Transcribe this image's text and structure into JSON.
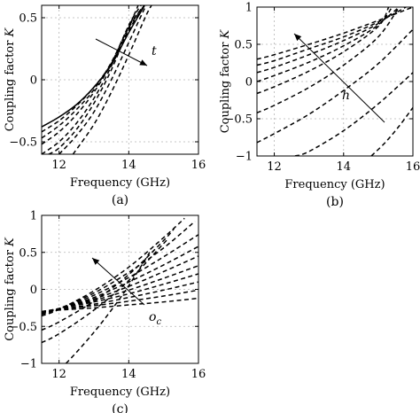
{
  "chart_data": [
    {
      "id": "a",
      "type": "line",
      "panel_label": "(a)",
      "xlabel": "Frequency (GHz)",
      "ylabel": "Coupling factor K",
      "xlim": [
        11.5,
        16
      ],
      "ylim": [
        -0.6,
        0.6
      ],
      "xticks": [
        12,
        14,
        16
      ],
      "yticks": [
        -0.5,
        0,
        0.5
      ],
      "grid": true,
      "annotation": {
        "label": "t",
        "direction": "increasing"
      },
      "series": [
        {
          "style": "solid",
          "x": [
            11.5,
            12,
            12.5,
            13,
            13.5,
            14,
            14.5
          ],
          "y": [
            -0.38,
            -0.3,
            -0.2,
            -0.06,
            0.12,
            0.38,
            0.62
          ]
        },
        {
          "style": "dashed",
          "x": [
            11.5,
            12,
            12.5,
            13,
            13.5,
            14,
            14.5
          ],
          "y": [
            -0.42,
            -0.33,
            -0.21,
            -0.06,
            0.13,
            0.4,
            0.62
          ]
        },
        {
          "style": "dashed",
          "x": [
            11.5,
            12,
            12.5,
            13,
            13.5,
            14,
            14.5
          ],
          "y": [
            -0.47,
            -0.37,
            -0.24,
            -0.08,
            0.14,
            0.42,
            0.62
          ]
        },
        {
          "style": "dashed",
          "x": [
            11.5,
            12,
            12.5,
            13,
            13.5,
            14,
            14.5
          ],
          "y": [
            -0.52,
            -0.42,
            -0.28,
            -0.1,
            0.13,
            0.43,
            0.62
          ]
        },
        {
          "style": "dashed",
          "x": [
            11.5,
            12,
            12.5,
            13,
            13.5,
            14,
            14.4
          ],
          "y": [
            -0.6,
            -0.5,
            -0.35,
            -0.15,
            0.11,
            0.44,
            0.62
          ]
        },
        {
          "style": "dashed",
          "x": [
            11.7,
            12,
            12.5,
            13,
            13.5,
            14,
            14.3
          ],
          "y": [
            -0.6,
            -0.55,
            -0.4,
            -0.19,
            0.08,
            0.42,
            0.62
          ]
        },
        {
          "style": "dashed",
          "x": [
            12.0,
            12.5,
            13,
            13.5,
            14,
            14.5,
            14.6
          ],
          "y": [
            -0.6,
            -0.45,
            -0.26,
            0.0,
            0.3,
            0.6,
            0.62
          ]
        },
        {
          "style": "dashed",
          "x": [
            12.4,
            13,
            13.5,
            14,
            14.5,
            14.7
          ],
          "y": [
            -0.6,
            -0.36,
            -0.1,
            0.2,
            0.52,
            0.62
          ]
        }
      ]
    },
    {
      "id": "b",
      "type": "line",
      "panel_label": "(b)",
      "xlabel": "Frequency (GHz)",
      "ylabel": "Coupling factor K",
      "xlim": [
        11.5,
        16
      ],
      "ylim": [
        -1,
        1
      ],
      "xticks": [
        12,
        14,
        16
      ],
      "yticks": [
        -1,
        -0.5,
        0,
        0.5,
        1
      ],
      "grid": true,
      "annotation": {
        "label": "h",
        "direction": "increasing"
      },
      "series": [
        {
          "style": "dashed",
          "x": [
            11.5,
            12,
            13,
            14,
            15,
            16
          ],
          "y": [
            0.3,
            0.36,
            0.5,
            0.65,
            0.82,
            1.0
          ]
        },
        {
          "style": "dashed",
          "x": [
            11.5,
            12,
            13,
            14,
            15,
            15.8
          ],
          "y": [
            0.22,
            0.28,
            0.44,
            0.6,
            0.8,
            1.0
          ]
        },
        {
          "style": "dashed",
          "x": [
            11.5,
            12,
            13,
            14,
            15,
            15.6
          ],
          "y": [
            0.12,
            0.19,
            0.36,
            0.55,
            0.78,
            1.0
          ]
        },
        {
          "style": "dashed",
          "x": [
            11.5,
            12,
            13,
            14,
            15,
            15.4
          ],
          "y": [
            0.0,
            0.08,
            0.26,
            0.48,
            0.76,
            1.0
          ]
        },
        {
          "style": "dashed",
          "x": [
            11.5,
            12,
            13,
            14,
            15,
            15.3
          ],
          "y": [
            -0.16,
            -0.07,
            0.14,
            0.4,
            0.74,
            1.0
          ]
        },
        {
          "style": "dashed",
          "x": [
            11.5,
            12,
            13,
            14,
            15,
            15.6
          ],
          "y": [
            -0.42,
            -0.32,
            -0.08,
            0.22,
            0.6,
            1.0
          ]
        },
        {
          "style": "dashed",
          "x": [
            11.5,
            12,
            13,
            14,
            15,
            16
          ],
          "y": [
            -0.82,
            -0.7,
            -0.44,
            -0.12,
            0.24,
            0.7
          ]
        },
        {
          "style": "dashed",
          "x": [
            12.6,
            13,
            14,
            15,
            16
          ],
          "y": [
            -1.0,
            -0.94,
            -0.66,
            -0.3,
            0.12
          ]
        },
        {
          "style": "dashed",
          "x": [
            14.8,
            15.2,
            15.6,
            16
          ],
          "y": [
            -1.0,
            -0.82,
            -0.6,
            -0.35
          ]
        }
      ]
    },
    {
      "id": "c",
      "type": "line",
      "panel_label": "(c)",
      "xlabel": "Frequency (GHz)",
      "ylabel": "Coupling factor K",
      "xlim": [
        11.5,
        16
      ],
      "ylim": [
        -1,
        1
      ],
      "xticks": [
        12,
        14,
        16
      ],
      "yticks": [
        -1,
        -0.5,
        0,
        0.5,
        1
      ],
      "grid": true,
      "annotation": {
        "label": "o_c",
        "direction": "decreasing"
      },
      "series": [
        {
          "style": "dashed",
          "x": [
            11.5,
            12,
            13,
            14,
            15,
            16
          ],
          "y": [
            -0.3,
            -0.28,
            -0.25,
            -0.21,
            -0.17,
            -0.12
          ]
        },
        {
          "style": "dashed",
          "x": [
            11.5,
            12,
            13,
            14,
            15,
            16
          ],
          "y": [
            -0.3,
            -0.27,
            -0.22,
            -0.16,
            -0.09,
            -0.01
          ]
        },
        {
          "style": "dashed",
          "x": [
            11.5,
            12,
            13,
            14,
            15,
            16
          ],
          "y": [
            -0.3,
            -0.27,
            -0.2,
            -0.11,
            -0.01,
            0.1
          ]
        },
        {
          "style": "dashed",
          "x": [
            11.5,
            12,
            13,
            14,
            15,
            16
          ],
          "y": [
            -0.3,
            -0.26,
            -0.17,
            -0.06,
            0.07,
            0.21
          ]
        },
        {
          "style": "dashed",
          "x": [
            11.5,
            12,
            13,
            14,
            15,
            16
          ],
          "y": [
            -0.31,
            -0.26,
            -0.15,
            -0.01,
            0.15,
            0.32
          ]
        },
        {
          "style": "dashed",
          "x": [
            11.5,
            12,
            13,
            14,
            15,
            16
          ],
          "y": [
            -0.31,
            -0.26,
            -0.13,
            0.04,
            0.24,
            0.45
          ]
        },
        {
          "style": "dashed",
          "x": [
            11.5,
            12,
            13,
            14,
            15,
            16
          ],
          "y": [
            -0.32,
            -0.26,
            -0.11,
            0.1,
            0.33,
            0.58
          ]
        },
        {
          "style": "dashed",
          "x": [
            11.5,
            12,
            13,
            14,
            15,
            16
          ],
          "y": [
            -0.33,
            -0.26,
            -0.08,
            0.16,
            0.44,
            0.74
          ]
        },
        {
          "style": "dashed",
          "x": [
            11.5,
            12,
            13,
            14,
            15,
            15.9
          ],
          "y": [
            -0.34,
            -0.26,
            -0.05,
            0.23,
            0.56,
            0.92
          ]
        },
        {
          "style": "dashed",
          "x": [
            11.5,
            12,
            13,
            14,
            15,
            15.6
          ],
          "y": [
            -0.36,
            -0.27,
            -0.02,
            0.3,
            0.7,
            0.96
          ]
        },
        {
          "style": "dashed",
          "x": [
            11.5,
            12,
            13,
            14,
            15,
            15.3
          ],
          "y": [
            -0.55,
            -0.44,
            -0.16,
            0.2,
            0.66,
            0.82
          ]
        },
        {
          "style": "dashed",
          "x": [
            11.5,
            12,
            13,
            14,
            15,
            15.0
          ],
          "y": [
            -0.72,
            -0.6,
            -0.28,
            0.12,
            0.62,
            0.62
          ]
        },
        {
          "style": "dashed",
          "x": [
            12.2,
            12.5,
            13,
            13.5,
            14,
            14.6
          ],
          "y": [
            -1.0,
            -0.85,
            -0.58,
            -0.28,
            0.05,
            0.5
          ]
        }
      ]
    }
  ]
}
